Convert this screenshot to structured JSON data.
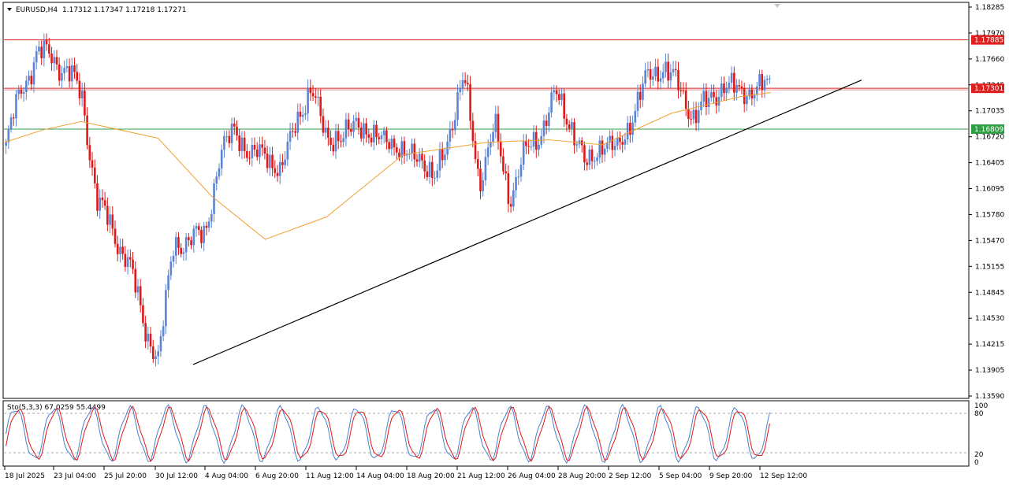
{
  "header": {
    "symbol": "EURUSD,H4",
    "ohlc": "1.17312 1.17347 1.17218 1.17271"
  },
  "price_axis": {
    "ticks": [
      "1.18285",
      "1.17970",
      "1.17660",
      "1.17345",
      "1.17035",
      "1.16720",
      "1.16405",
      "1.16095",
      "1.15780",
      "1.15470",
      "1.15155",
      "1.14845",
      "1.14530",
      "1.14215",
      "1.13905",
      "1.13590"
    ]
  },
  "levels": [
    {
      "label": "1.17885",
      "price": 1.17885,
      "color": "#dd1f1f"
    },
    {
      "label": "1.17301",
      "price": 1.17301,
      "color": "#dd1f1f"
    },
    {
      "label": "1.16809",
      "price": 1.16809,
      "color": "#2f9e44"
    }
  ],
  "time_axis": {
    "labels": [
      "18 Jul 2025",
      "23 Jul 04:00",
      "25 Jul 20:00",
      "30 Jul 12:00",
      "4 Aug 04:00",
      "6 Aug 20:00",
      "11 Aug 12:00",
      "14 Aug 04:00",
      "18 Aug 20:00",
      "21 Aug 12:00",
      "26 Aug 04:00",
      "28 Aug 20:00",
      "2 Sep 12:00",
      "5 Sep 04:00",
      "9 Sep 20:00",
      "12 Sep 12:00"
    ]
  },
  "stochastic": {
    "label": "Sto(5,3,3) 67.0259 55.4499",
    "levels": [
      "100",
      "80",
      "20",
      "0"
    ]
  },
  "colors": {
    "bull": "#5b84d4",
    "bear": "#e01818",
    "ma": "#f0a030",
    "trendline": "#000000",
    "stoch_main": "#4a7fd0",
    "stoch_signal": "#e01818"
  },
  "chart_data": {
    "type": "candlestick",
    "symbol": "EURUSD",
    "timeframe": "H4",
    "ylim": [
      1.1359,
      1.1829
    ],
    "anchors": [
      [
        "18 Jul",
        1.166
      ],
      [
        "20 Jul",
        1.173
      ],
      [
        "22 Jul",
        1.177
      ],
      [
        "23 Jul",
        1.177
      ],
      [
        "24 Jul",
        1.175
      ],
      [
        "25 Jul",
        1.172
      ],
      [
        "26 Jul",
        1.159
      ],
      [
        "27 Jul",
        1.156
      ],
      [
        "28 Jul",
        1.152
      ],
      [
        "29 Jul",
        1.145
      ],
      [
        "30 Jul",
        1.14
      ],
      [
        "31 Jul",
        1.155
      ],
      [
        "1 Aug",
        1.154
      ],
      [
        "2 Aug",
        1.156
      ],
      [
        "4 Aug",
        1.164
      ],
      [
        "5 Aug",
        1.169
      ],
      [
        "6 Aug",
        1.164
      ],
      [
        "7 Aug",
        1.166
      ],
      [
        "8 Aug",
        1.162
      ],
      [
        "9 Aug",
        1.17
      ],
      [
        "10 Aug",
        1.172
      ],
      [
        "11 Aug",
        1.168
      ],
      [
        "12 Aug",
        1.166
      ],
      [
        "13 Aug",
        1.17
      ],
      [
        "14 Aug",
        1.166
      ],
      [
        "15 Aug",
        1.168
      ],
      [
        "17 Aug",
        1.164
      ],
      [
        "18 Aug",
        1.166
      ],
      [
        "19 Aug",
        1.161
      ],
      [
        "20 Aug",
        1.168
      ],
      [
        "21 Aug",
        1.174
      ],
      [
        "22 Aug",
        1.162
      ],
      [
        "24 Aug",
        1.168
      ],
      [
        "25 Aug",
        1.16
      ],
      [
        "26 Aug",
        1.165
      ],
      [
        "27 Aug",
        1.168
      ],
      [
        "28 Aug",
        1.172
      ],
      [
        "29 Aug",
        1.169
      ],
      [
        "30 Aug",
        1.163
      ],
      [
        "1 Sep",
        1.167
      ],
      [
        "2 Sep",
        1.165
      ],
      [
        "3 Sep",
        1.17
      ],
      [
        "4 Sep",
        1.174
      ],
      [
        "5 Sep",
        1.176
      ],
      [
        "6 Sep",
        1.173
      ],
      [
        "7 Sep",
        1.17
      ],
      [
        "8 Sep",
        1.171
      ],
      [
        "9 Sep",
        1.174
      ],
      [
        "10 Sep",
        1.172
      ],
      [
        "11 Sep",
        1.1735
      ],
      [
        "12 Sep",
        1.1727
      ]
    ],
    "ma_anchors": [
      [
        1.1665,
        0
      ],
      [
        1.168,
        0.05
      ],
      [
        1.169,
        0.1
      ],
      [
        1.167,
        0.2
      ],
      [
        1.16,
        0.27
      ],
      [
        1.1548,
        0.34
      ],
      [
        1.1575,
        0.42
      ],
      [
        1.165,
        0.52
      ],
      [
        1.1665,
        0.63
      ],
      [
        1.1668,
        0.71
      ],
      [
        1.1662,
        0.78
      ],
      [
        1.17,
        0.87
      ],
      [
        1.172,
        0.96
      ],
      [
        1.1725,
        1.0
      ]
    ],
    "trendline": {
      "from": [
        "30 Jul 12:00",
        1.1397
      ],
      "to": [
        "12 Sep",
        1.172
      ]
    },
    "stochastic": {
      "main_last": 67.0259,
      "signal_last": 55.4499,
      "levels": [
        80,
        20
      ]
    }
  }
}
